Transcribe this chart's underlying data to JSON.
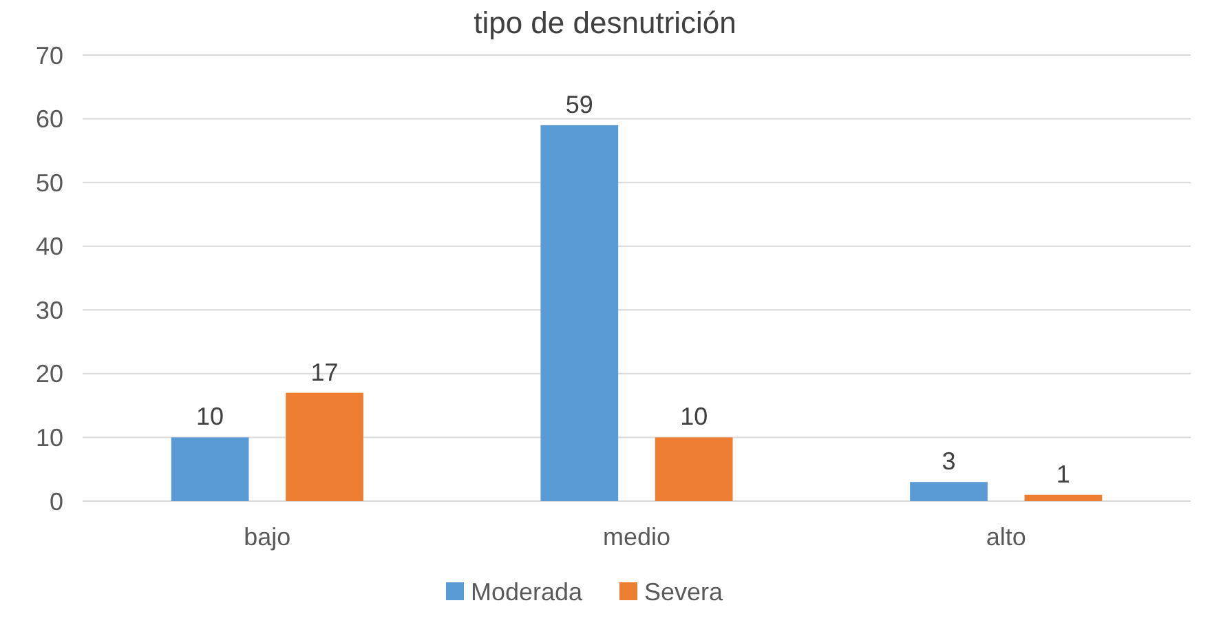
{
  "chart_data": {
    "type": "bar",
    "title": "tipo de desnutrición",
    "categories": [
      "bajo",
      "medio",
      "alto"
    ],
    "series": [
      {
        "name": "Moderada",
        "color": "#5b9bd5",
        "values": [
          10,
          59,
          3
        ]
      },
      {
        "name": "Severa",
        "color": "#ed7d31",
        "values": [
          17,
          10,
          1
        ]
      }
    ],
    "ylim": [
      0,
      70
    ],
    "yticks": [
      0,
      10,
      20,
      30,
      40,
      50,
      60,
      70
    ],
    "grid": "y",
    "legend": "bottom",
    "data_labels": true
  }
}
